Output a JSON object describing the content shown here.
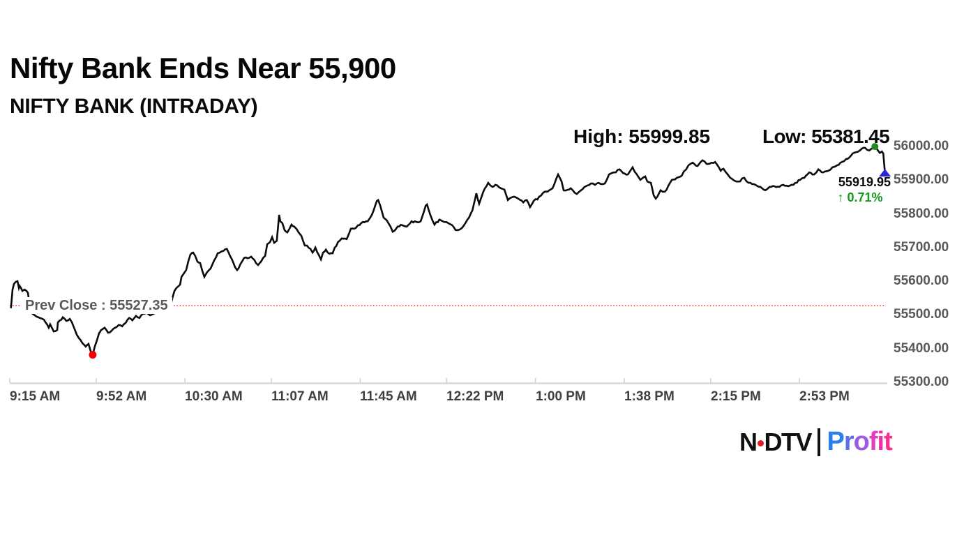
{
  "header": {
    "title": "Nifty Bank Ends Near 55,900",
    "subtitle": "NIFTY BANK (INTRADAY)"
  },
  "stats": {
    "high_label": "High: 55999.85",
    "low_label": "Low: 55381.45"
  },
  "annotations": {
    "prev_close_label": "Prev Close : 55527.35",
    "last_price_label": "55919.95",
    "change_arrow": "↑",
    "change_pct_label": "0.71%"
  },
  "footer": {
    "brand_ndtv_n": "N",
    "brand_ndtv_dtv": "DTV",
    "brand_profit": "Profit"
  },
  "colors": {
    "line": "#0b0b0b",
    "prev_close_line": "#ff0000",
    "high_dot": "#1e8e1e",
    "low_dot": "#f40000",
    "last_marker": "#2727d8",
    "change_green": "#14991a",
    "axis_line": "#d8d8d8",
    "tick": "#cfcfcf",
    "ndtv_red": "#e11a22",
    "ndtv_black": "#111111",
    "profit_gradient": [
      "#2b7de9",
      "#5f6ee9",
      "#9a5ce4",
      "#e23ec0",
      "#f32ea4",
      "#fb2e8c"
    ]
  },
  "chart_data": {
    "type": "line",
    "title": "NIFTY BANK (INTRADAY)",
    "x_unit": "minutes since 9:15 AM",
    "session": {
      "start": "9:15 AM",
      "end": "3:30 PM",
      "minutes": 375
    },
    "ylim": [
      55300,
      56000
    ],
    "grid": false,
    "legend": false,
    "y_ticks": [
      {
        "label": "56000.00",
        "value": 56000
      },
      {
        "label": "55900.00",
        "value": 55900
      },
      {
        "label": "55800.00",
        "value": 55800
      },
      {
        "label": "55700.00",
        "value": 55700
      },
      {
        "label": "55600.00",
        "value": 55600
      },
      {
        "label": "55500.00",
        "value": 55500
      },
      {
        "label": "55400.00",
        "value": 55400
      },
      {
        "label": "55300.00",
        "value": 55300
      }
    ],
    "x_ticks": [
      {
        "label": "9:15 AM",
        "minute": 0
      },
      {
        "label": "9:52 AM",
        "minute": 37
      },
      {
        "label": "10:30 AM",
        "minute": 75
      },
      {
        "label": "11:07 AM",
        "minute": 112
      },
      {
        "label": "11:45 AM",
        "minute": 150
      },
      {
        "label": "12:22 PM",
        "minute": 187
      },
      {
        "label": "1:00 PM",
        "minute": 225
      },
      {
        "label": "1:38 PM",
        "minute": 263
      },
      {
        "label": "2:15 PM",
        "minute": 300
      },
      {
        "label": "2:53 PM",
        "minute": 338
      }
    ],
    "prev_close": 55527.35,
    "high": {
      "value": 55999.85,
      "minute": 370.3
    },
    "low": {
      "value": 55381.45,
      "minute": 35.5
    },
    "last": {
      "value": 55919.95,
      "minute": 374.6,
      "change_pct": 0.71
    },
    "series": [
      {
        "name": "NIFTY BANK",
        "points": [
          [
            0.5,
            55520
          ],
          [
            1.2,
            55575
          ],
          [
            1.8,
            55592
          ],
          [
            3.3,
            55600
          ],
          [
            3.9,
            55580
          ],
          [
            4.2,
            55586
          ],
          [
            5.4,
            55571
          ],
          [
            6.3,
            55575
          ],
          [
            7.2,
            55571
          ],
          [
            7.8,
            55565
          ],
          [
            8.7,
            55513
          ],
          [
            10.7,
            55499
          ],
          [
            12.2,
            55493
          ],
          [
            14.6,
            55486
          ],
          [
            16.7,
            55462
          ],
          [
            17.3,
            55472
          ],
          [
            18.8,
            55451
          ],
          [
            20.3,
            55455
          ],
          [
            20.6,
            55478
          ],
          [
            22.1,
            55486
          ],
          [
            22.7,
            55493
          ],
          [
            24.2,
            55482
          ],
          [
            25.7,
            55488
          ],
          [
            26.6,
            55478
          ],
          [
            27.8,
            55457
          ],
          [
            28.7,
            55441
          ],
          [
            29.6,
            55431
          ],
          [
            31.1,
            55416
          ],
          [
            32.5,
            55406
          ],
          [
            33.7,
            55414
          ],
          [
            34.6,
            55393
          ],
          [
            35.5,
            55381.45
          ],
          [
            36.4,
            55406
          ],
          [
            37.3,
            55424
          ],
          [
            38.2,
            55445
          ],
          [
            39.1,
            55455
          ],
          [
            40.6,
            55462
          ],
          [
            42.1,
            55447
          ],
          [
            43.6,
            55453
          ],
          [
            45.1,
            55462
          ],
          [
            46.6,
            55470
          ],
          [
            48.1,
            55466
          ],
          [
            49.6,
            55476
          ],
          [
            51.1,
            55491
          ],
          [
            52.5,
            55484
          ],
          [
            54,
            55497
          ],
          [
            55.5,
            55491
          ],
          [
            57,
            55503
          ],
          [
            58.5,
            55507
          ],
          [
            60,
            55499
          ],
          [
            61.5,
            55503
          ],
          [
            63,
            55511
          ],
          [
            64.5,
            55507
          ],
          [
            66,
            55517
          ],
          [
            67.5,
            55524
          ],
          [
            69,
            55532
          ],
          [
            70.5,
            55571
          ],
          [
            72.9,
            55590
          ],
          [
            73.5,
            55613
          ],
          [
            74.3,
            55621
          ],
          [
            75.5,
            55633
          ],
          [
            77.3,
            55679
          ],
          [
            78.5,
            55685
          ],
          [
            79.4,
            55675
          ],
          [
            80.3,
            55658
          ],
          [
            81.5,
            55654
          ],
          [
            82.4,
            55631
          ],
          [
            83.3,
            55613
          ],
          [
            84.5,
            55627
          ],
          [
            86,
            55638
          ],
          [
            87.5,
            55662
          ],
          [
            89,
            55683
          ],
          [
            90.8,
            55689
          ],
          [
            92.9,
            55696
          ],
          [
            94.3,
            55675
          ],
          [
            96.4,
            55642
          ],
          [
            97.3,
            55633
          ],
          [
            99.4,
            55658
          ],
          [
            100.3,
            55669
          ],
          [
            102.4,
            55669
          ],
          [
            103.3,
            55673
          ],
          [
            105.4,
            55654
          ],
          [
            106.3,
            55648
          ],
          [
            108.4,
            55669
          ],
          [
            109.3,
            55675
          ],
          [
            110.2,
            55710
          ],
          [
            111.4,
            55716
          ],
          [
            112.3,
            55731
          ],
          [
            113.2,
            55714
          ],
          [
            114.3,
            55720
          ],
          [
            115.3,
            55797
          ],
          [
            115.8,
            55778
          ],
          [
            116.7,
            55772
          ],
          [
            117.6,
            55752
          ],
          [
            118.8,
            55745
          ],
          [
            120.6,
            55768
          ],
          [
            121.8,
            55762
          ],
          [
            123.6,
            55745
          ],
          [
            124.8,
            55735
          ],
          [
            126.3,
            55706
          ],
          [
            127.2,
            55706
          ],
          [
            128.7,
            55696
          ],
          [
            129.6,
            55685
          ],
          [
            130.8,
            55700
          ],
          [
            133.2,
            55665
          ],
          [
            134.1,
            55685
          ],
          [
            135.3,
            55694
          ],
          [
            136.1,
            55685
          ],
          [
            138.2,
            55683
          ],
          [
            139.1,
            55700
          ],
          [
            141.2,
            55720
          ],
          [
            142.1,
            55727
          ],
          [
            144.2,
            55725
          ],
          [
            146,
            55756
          ],
          [
            148.1,
            55758
          ],
          [
            149,
            55766
          ],
          [
            151.1,
            55776
          ],
          [
            153.2,
            55778
          ],
          [
            155,
            55797
          ],
          [
            157.1,
            55838
          ],
          [
            157.7,
            55841
          ],
          [
            158.6,
            55824
          ],
          [
            160,
            55789
          ],
          [
            162.1,
            55772
          ],
          [
            163.9,
            55747
          ],
          [
            166,
            55762
          ],
          [
            168.1,
            55766
          ],
          [
            169.9,
            55762
          ],
          [
            172,
            55778
          ],
          [
            174.1,
            55776
          ],
          [
            175.9,
            55778
          ],
          [
            178,
            55824
          ],
          [
            178.6,
            55828
          ],
          [
            180,
            55797
          ],
          [
            181.8,
            55768
          ],
          [
            183.9,
            55783
          ],
          [
            186,
            55776
          ],
          [
            187.8,
            55772
          ],
          [
            189.9,
            55762
          ],
          [
            190.8,
            55752
          ],
          [
            193.5,
            55758
          ],
          [
            195.9,
            55783
          ],
          [
            198,
            55810
          ],
          [
            199.7,
            55861
          ],
          [
            200.9,
            55830
          ],
          [
            202.7,
            55866
          ],
          [
            204.8,
            55892
          ],
          [
            206.6,
            55880
          ],
          [
            207.8,
            55886
          ],
          [
            210.2,
            55876
          ],
          [
            211.7,
            55872
          ],
          [
            213.2,
            55841
          ],
          [
            215.9,
            55851
          ],
          [
            217.7,
            55845
          ],
          [
            219.8,
            55834
          ],
          [
            221.3,
            55841
          ],
          [
            222.7,
            55820
          ],
          [
            223.6,
            55830
          ],
          [
            226.6,
            55851
          ],
          [
            228.1,
            55861
          ],
          [
            230.2,
            55866
          ],
          [
            232.3,
            55876
          ],
          [
            234.7,
            55917
          ],
          [
            236.2,
            55896
          ],
          [
            237.1,
            55870
          ],
          [
            240.1,
            55876
          ],
          [
            242.7,
            55859
          ],
          [
            244.5,
            55870
          ],
          [
            246.6,
            55882
          ],
          [
            248.7,
            55890
          ],
          [
            250.5,
            55886
          ],
          [
            252,
            55892
          ],
          [
            254.7,
            55890
          ],
          [
            256.5,
            55917
          ],
          [
            258.6,
            55923
          ],
          [
            261,
            55932
          ],
          [
            262.5,
            55921
          ],
          [
            264.6,
            55917
          ],
          [
            266.6,
            55938
          ],
          [
            268.4,
            55917
          ],
          [
            269.9,
            55901
          ],
          [
            272,
            55911
          ],
          [
            272.9,
            55896
          ],
          [
            274.4,
            55892
          ],
          [
            275.6,
            55855
          ],
          [
            276.5,
            55845
          ],
          [
            278.6,
            55870
          ],
          [
            280.4,
            55866
          ],
          [
            283.4,
            55901
          ],
          [
            285.5,
            55907
          ],
          [
            287.6,
            55913
          ],
          [
            290.5,
            55944
          ],
          [
            292.3,
            55952
          ],
          [
            294.4,
            55942
          ],
          [
            296.5,
            55959
          ],
          [
            298.3,
            55948
          ],
          [
            300.4,
            55952
          ],
          [
            301.9,
            55954
          ],
          [
            304.3,
            55928
          ],
          [
            305.5,
            55934
          ],
          [
            307.3,
            55917
          ],
          [
            309.3,
            55903
          ],
          [
            311.7,
            55896
          ],
          [
            314.4,
            55907
          ],
          [
            316.2,
            55892
          ],
          [
            319.2,
            55886
          ],
          [
            321.3,
            55880
          ],
          [
            323.4,
            55870
          ],
          [
            325.2,
            55880
          ],
          [
            327.3,
            55882
          ],
          [
            329.4,
            55880
          ],
          [
            331.1,
            55886
          ],
          [
            333.2,
            55882
          ],
          [
            336.2,
            55892
          ],
          [
            338.3,
            55901
          ],
          [
            340.1,
            55907
          ],
          [
            342.2,
            55923
          ],
          [
            344.3,
            55917
          ],
          [
            346.1,
            55932
          ],
          [
            348.2,
            55923
          ],
          [
            350.3,
            55928
          ],
          [
            352.1,
            55938
          ],
          [
            354.1,
            55944
          ],
          [
            356.2,
            55954
          ],
          [
            358,
            55963
          ],
          [
            360.1,
            55973
          ],
          [
            362.2,
            55983
          ],
          [
            364,
            55989
          ],
          [
            366.1,
            55996
          ],
          [
            367.9,
            55988
          ],
          [
            369.1,
            55994
          ],
          [
            370.3,
            55999.85
          ],
          [
            371.5,
            55989
          ],
          [
            372.4,
            55981
          ],
          [
            373.3,
            55985
          ],
          [
            373.9,
            55979
          ],
          [
            374.6,
            55919.95
          ]
        ]
      }
    ]
  }
}
